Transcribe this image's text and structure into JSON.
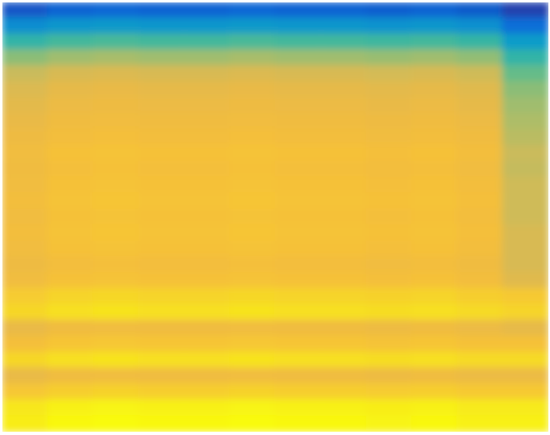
{
  "chart_data": {
    "type": "heatmap",
    "tick_labels": false,
    "zlim": [
      0,
      1
    ],
    "cells": [
      [
        0.09,
        0.12,
        0.13,
        0.12,
        0.12,
        0.13,
        0.12,
        0.12,
        0.11,
        0.12,
        0.1,
        0.05
      ],
      [
        0.25,
        0.28,
        0.29,
        0.28,
        0.28,
        0.29,
        0.28,
        0.28,
        0.27,
        0.28,
        0.26,
        0.15
      ],
      [
        0.42,
        0.45,
        0.46,
        0.45,
        0.45,
        0.46,
        0.45,
        0.45,
        0.44,
        0.45,
        0.43,
        0.3
      ],
      [
        0.55,
        0.58,
        0.59,
        0.58,
        0.58,
        0.59,
        0.58,
        0.58,
        0.57,
        0.58,
        0.56,
        0.42
      ],
      [
        0.65,
        0.68,
        0.69,
        0.68,
        0.68,
        0.69,
        0.68,
        0.68,
        0.67,
        0.68,
        0.66,
        0.5
      ],
      [
        0.69,
        0.72,
        0.73,
        0.72,
        0.72,
        0.73,
        0.72,
        0.72,
        0.71,
        0.72,
        0.7,
        0.55
      ],
      [
        0.71,
        0.74,
        0.75,
        0.74,
        0.74,
        0.75,
        0.74,
        0.74,
        0.73,
        0.74,
        0.72,
        0.58
      ],
      [
        0.73,
        0.76,
        0.77,
        0.76,
        0.76,
        0.77,
        0.76,
        0.76,
        0.75,
        0.76,
        0.74,
        0.6
      ],
      [
        0.75,
        0.78,
        0.79,
        0.78,
        0.78,
        0.79,
        0.78,
        0.78,
        0.77,
        0.78,
        0.76,
        0.62
      ],
      [
        0.77,
        0.8,
        0.81,
        0.8,
        0.8,
        0.81,
        0.8,
        0.8,
        0.79,
        0.8,
        0.78,
        0.65
      ],
      [
        0.76,
        0.79,
        0.8,
        0.79,
        0.79,
        0.8,
        0.79,
        0.79,
        0.78,
        0.79,
        0.77,
        0.64
      ],
      [
        0.77,
        0.8,
        0.81,
        0.8,
        0.8,
        0.81,
        0.8,
        0.8,
        0.79,
        0.8,
        0.78,
        0.66
      ],
      [
        0.78,
        0.81,
        0.82,
        0.81,
        0.81,
        0.82,
        0.81,
        0.81,
        0.8,
        0.81,
        0.79,
        0.66
      ],
      [
        0.77,
        0.8,
        0.81,
        0.8,
        0.8,
        0.81,
        0.8,
        0.8,
        0.79,
        0.8,
        0.78,
        0.66
      ],
      [
        0.78,
        0.81,
        0.82,
        0.81,
        0.81,
        0.82,
        0.81,
        0.81,
        0.8,
        0.81,
        0.79,
        0.68
      ],
      [
        0.77,
        0.8,
        0.81,
        0.8,
        0.8,
        0.81,
        0.8,
        0.8,
        0.79,
        0.8,
        0.78,
        0.68
      ],
      [
        0.75,
        0.78,
        0.79,
        0.78,
        0.78,
        0.79,
        0.78,
        0.78,
        0.77,
        0.78,
        0.76,
        0.68
      ],
      [
        0.77,
        0.8,
        0.81,
        0.8,
        0.8,
        0.81,
        0.8,
        0.8,
        0.79,
        0.8,
        0.78,
        0.7
      ],
      [
        0.85,
        0.88,
        0.89,
        0.88,
        0.88,
        0.89,
        0.88,
        0.88,
        0.87,
        0.88,
        0.86,
        0.84
      ],
      [
        0.89,
        0.92,
        0.93,
        0.92,
        0.92,
        0.93,
        0.92,
        0.92,
        0.91,
        0.92,
        0.9,
        0.88
      ],
      [
        0.73,
        0.76,
        0.77,
        0.76,
        0.76,
        0.77,
        0.76,
        0.76,
        0.75,
        0.76,
        0.74,
        0.72
      ],
      [
        0.79,
        0.82,
        0.83,
        0.82,
        0.82,
        0.83,
        0.82,
        0.82,
        0.81,
        0.82,
        0.8,
        0.8
      ],
      [
        0.89,
        0.92,
        0.93,
        0.92,
        0.92,
        0.93,
        0.92,
        0.92,
        0.91,
        0.92,
        0.9,
        0.9
      ],
      [
        0.73,
        0.76,
        0.77,
        0.76,
        0.76,
        0.77,
        0.76,
        0.76,
        0.75,
        0.76,
        0.74,
        0.74
      ],
      [
        0.83,
        0.86,
        0.87,
        0.86,
        0.86,
        0.87,
        0.86,
        0.86,
        0.85,
        0.86,
        0.84,
        0.84
      ],
      [
        0.94,
        0.97,
        0.98,
        0.97,
        0.97,
        0.98,
        0.97,
        0.97,
        0.96,
        0.97,
        0.95,
        0.95
      ],
      [
        0.96,
        0.99,
        1.0,
        0.99,
        0.99,
        1.0,
        0.99,
        0.99,
        0.98,
        0.99,
        0.97,
        0.97
      ]
    ]
  }
}
